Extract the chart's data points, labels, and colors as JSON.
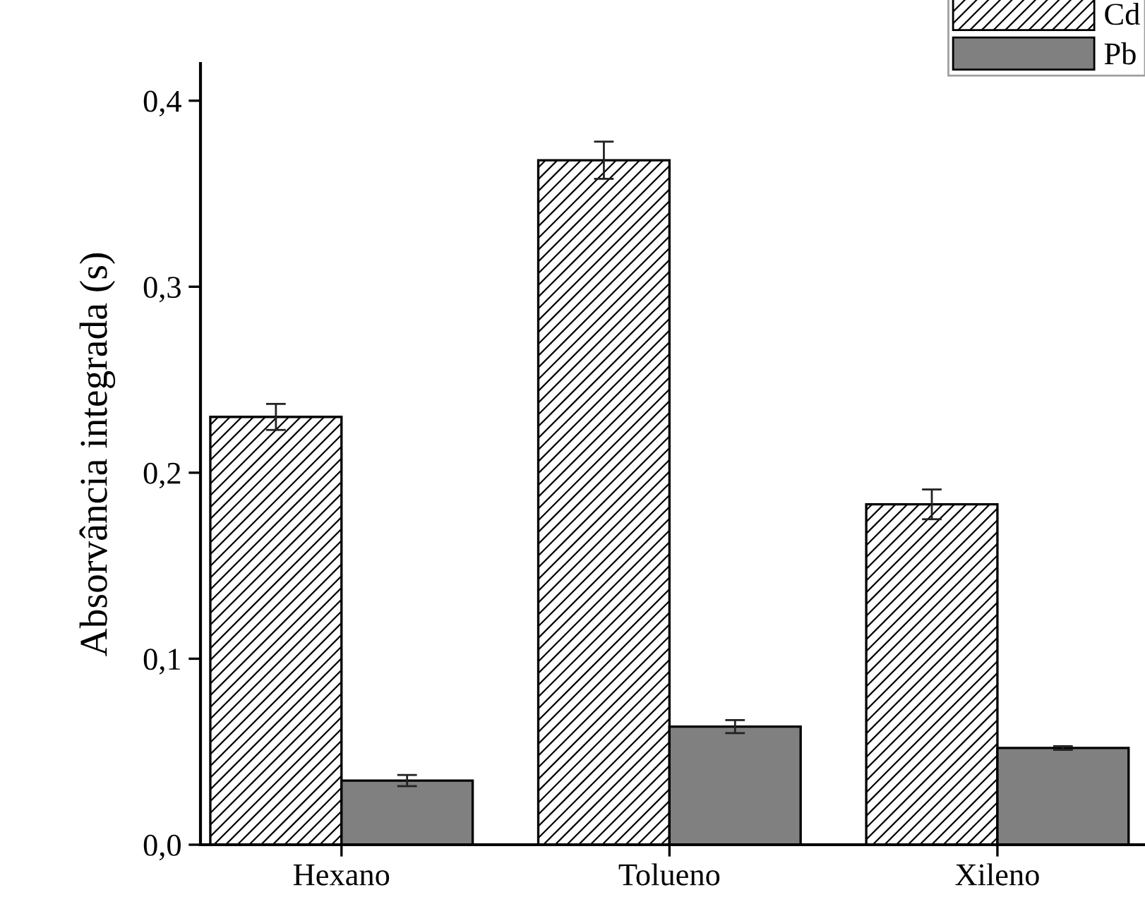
{
  "chart_data": {
    "type": "bar",
    "ylabel": "Absorvância integrada (s)",
    "categories": [
      "Hexano",
      "Tolueno",
      "Xileno"
    ],
    "series": [
      {
        "name": "Cd",
        "color": "#000000",
        "values": [
          0.23,
          0.368,
          0.183
        ],
        "errors": [
          0.007,
          0.01,
          0.008
        ]
      },
      {
        "name": "Pb",
        "color": "#808080",
        "values": [
          0.0345,
          0.0635,
          0.052
        ],
        "errors": [
          0.003,
          0.0035,
          0.001
        ]
      }
    ],
    "ylim": [
      0,
      0.42
    ],
    "yticks": [
      {
        "value": 0,
        "label": "0,0"
      },
      {
        "value": 0.1,
        "label": "0,1"
      },
      {
        "value": 0.2,
        "label": "0,2"
      },
      {
        "value": 0.3,
        "label": "0,3"
      },
      {
        "value": 0.4,
        "label": "0,4"
      }
    ],
    "legend": "top right",
    "grid": false
  }
}
